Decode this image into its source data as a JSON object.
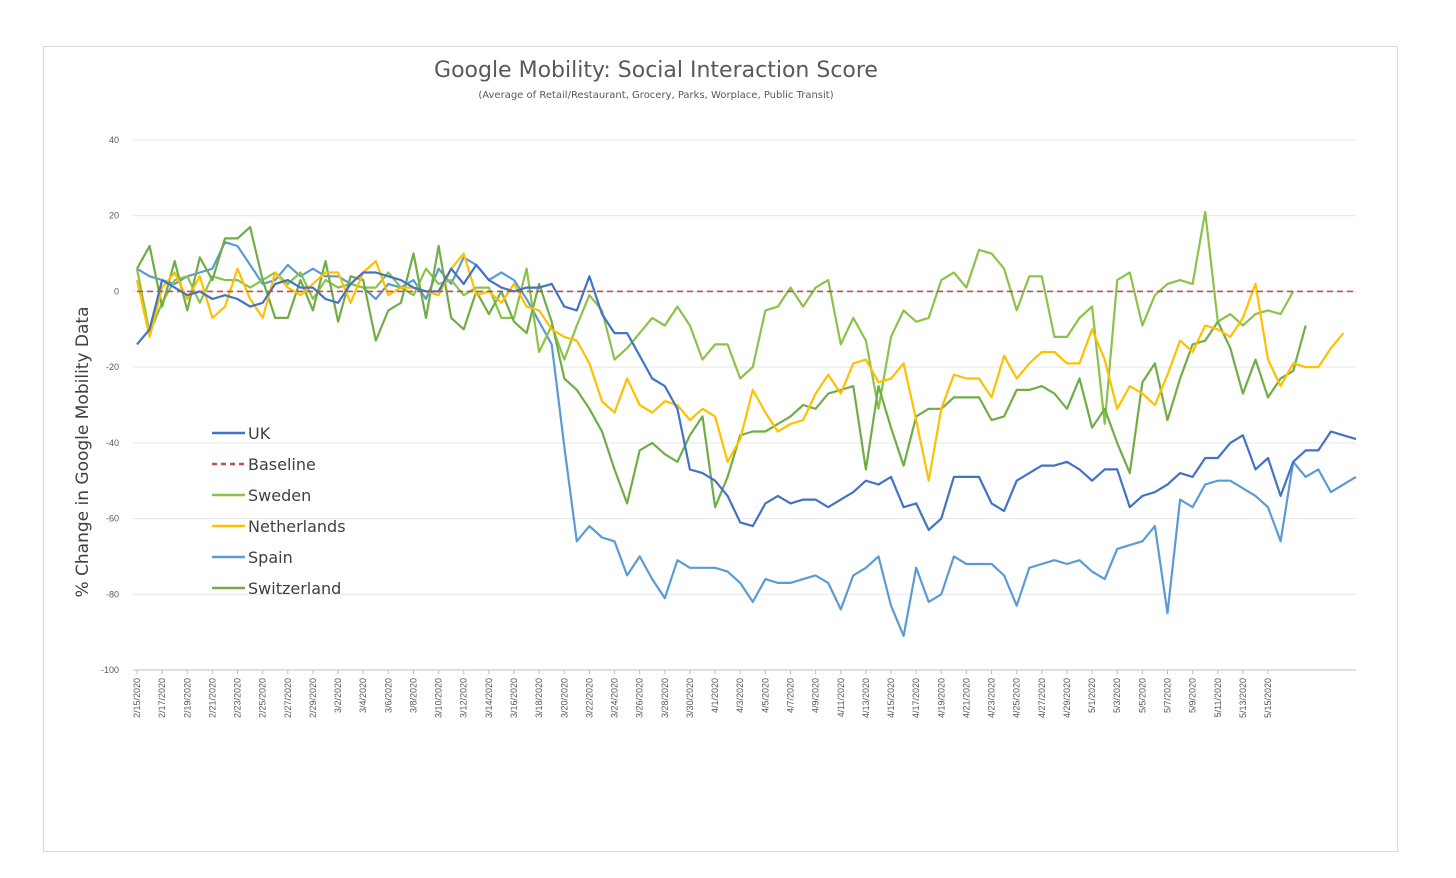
{
  "chart_data": {
    "type": "line",
    "title": "Google Mobility:  Social Interaction Score",
    "subtitle": "(Average of Retail/Restaurant, Grocery, Parks, Worplace,  Public Transit)",
    "xlabel": "",
    "ylabel": "% Change in Google Mobility Data",
    "ylim": [
      -100,
      40
    ],
    "yticks": [
      40,
      20,
      0,
      -20,
      -40,
      -60,
      -80,
      -100
    ],
    "grid": true,
    "legend": "left-center",
    "x_tick_labels": [
      "2/15/2020",
      "2/17/2020",
      "2/19/2020",
      "2/21/2020",
      "2/23/2020",
      "2/25/2020",
      "2/27/2020",
      "2/29/2020",
      "3/2/2020",
      "3/4/2020",
      "3/6/2020",
      "3/8/2020",
      "3/10/2020",
      "3/12/2020",
      "3/14/2020",
      "3/16/2020",
      "3/18/2020",
      "3/20/2020",
      "3/22/2020",
      "3/24/2020",
      "3/26/2020",
      "3/28/2020",
      "3/30/2020",
      "4/1/2020",
      "4/3/2020",
      "4/5/2020",
      "4/7/2020",
      "4/9/2020",
      "4/11/2020",
      "4/13/2020",
      "4/15/2020",
      "4/17/2020",
      "4/19/2020",
      "4/21/2020",
      "4/23/2020",
      "4/25/2020",
      "4/27/2020",
      "4/29/2020",
      "5/1/2020",
      "5/3/2020",
      "5/5/2020",
      "5/7/2020",
      "5/9/2020",
      "5/11/2020",
      "5/13/2020",
      "5/15/2020"
    ],
    "series": [
      {
        "name": "UK",
        "color": "#4472c4",
        "dash": "",
        "values": [
          -14,
          -10,
          3,
          1,
          -1,
          0,
          -2,
          -1,
          -2,
          -4,
          -3,
          2,
          3,
          1,
          1,
          -2,
          -3,
          2,
          5,
          5,
          4,
          3,
          1,
          0,
          0,
          6,
          2,
          7,
          3,
          1,
          0,
          1,
          1,
          2,
          -4,
          -5,
          4,
          -6,
          -11,
          -11,
          -17,
          -23,
          -25,
          -31,
          -47,
          -48,
          -50,
          -54,
          -61,
          -62,
          -56,
          -54,
          -56,
          -55,
          -55,
          -57,
          -55,
          -53,
          -50,
          -51,
          -49,
          -57,
          -56,
          -63,
          -60,
          -49,
          -49,
          -49,
          -56,
          -58,
          -50,
          -48,
          -46,
          -46,
          -45,
          -47,
          -50,
          -47,
          -47,
          -57,
          -54,
          -53,
          -51,
          -48,
          -49,
          -44,
          -44,
          -40,
          -38,
          -47,
          -44,
          -54,
          -45,
          -42,
          -42,
          -37,
          -38,
          -39
        ]
      },
      {
        "name": "Baseline",
        "color": "#c0504d",
        "dash": "6,4",
        "values": [
          0,
          0,
          0,
          0,
          0,
          0,
          0,
          0,
          0,
          0,
          0,
          0,
          0,
          0,
          0,
          0,
          0,
          0,
          0,
          0,
          0,
          0,
          0,
          0,
          0,
          0,
          0,
          0,
          0,
          0,
          0,
          0,
          0,
          0,
          0,
          0,
          0,
          0,
          0,
          0,
          0,
          0,
          0,
          0,
          0,
          0,
          0,
          0,
          0,
          0,
          0,
          0,
          0,
          0,
          0,
          0,
          0,
          0,
          0,
          0,
          0,
          0,
          0,
          0,
          0,
          0,
          0,
          0,
          0,
          0,
          0,
          0,
          0,
          0,
          0,
          0,
          0,
          0,
          0,
          0,
          0,
          0,
          0,
          0,
          0,
          0,
          0,
          0,
          0,
          0,
          0,
          0,
          0,
          0,
          0,
          0,
          0,
          0
        ]
      },
      {
        "name": "Sweden",
        "color": "#8bc34a",
        "dash": "",
        "values": [
          6,
          -11,
          -3,
          3,
          4,
          -3,
          4,
          3,
          3,
          1,
          3,
          5,
          2,
          5,
          -2,
          3,
          1,
          2,
          1,
          1,
          5,
          1,
          -1,
          6,
          2,
          3,
          -1,
          1,
          1,
          -7,
          -7,
          6,
          -16,
          -9,
          -18,
          -9,
          -1,
          -5,
          -18,
          -15,
          -11,
          -7,
          -9,
          -4,
          -9,
          -18,
          -14,
          -14,
          -23,
          -20,
          -5,
          -4,
          1,
          -4,
          1,
          3,
          -14,
          -7,
          -13,
          -31,
          -12,
          -5,
          -8,
          -7,
          3,
          5,
          1,
          11,
          10,
          6,
          -5,
          4,
          4,
          -12,
          -12,
          -7,
          -4,
          -35,
          3,
          5,
          -9,
          -1,
          2,
          3,
          2,
          21,
          -8,
          -6,
          -9,
          -6,
          -5,
          -6,
          0
        ]
      },
      {
        "name": "Netherlands",
        "color": "#ffc000",
        "dash": "",
        "values": [
          3,
          -12,
          1,
          5,
          -2,
          4,
          -7,
          -4,
          6,
          -2,
          -7,
          5,
          1,
          -1,
          2,
          5,
          5,
          -3,
          5,
          8,
          -1,
          1,
          1,
          0,
          -1,
          6,
          10,
          -1,
          0,
          -3,
          2,
          -4,
          -5,
          -10,
          -12,
          -13,
          -19,
          -29,
          -32,
          -23,
          -30,
          -32,
          -29,
          -30,
          -34,
          -31,
          -33,
          -45,
          -39,
          -26,
          -32,
          -37,
          -35,
          -34,
          -27,
          -22,
          -27,
          -19,
          -18,
          -24,
          -23,
          -19,
          -34,
          -50,
          -31,
          -22,
          -23,
          -23,
          -28,
          -17,
          -23,
          -19,
          -16,
          -16,
          -19,
          -19,
          -10,
          -18,
          -31,
          -25,
          -27,
          -30,
          -22,
          -13,
          -16,
          -9,
          -10,
          -12,
          -7,
          2,
          -18,
          -25,
          -19,
          -20,
          -20,
          -15,
          -11
        ]
      },
      {
        "name": "Spain",
        "color": "#5b9bd5",
        "dash": "",
        "values": [
          6,
          4,
          3,
          2,
          4,
          5,
          6,
          13,
          12,
          7,
          2,
          3,
          7,
          4,
          6,
          4,
          4,
          2,
          1,
          -2,
          2,
          1,
          3,
          -2,
          6,
          2,
          9,
          7,
          3,
          5,
          3,
          -2,
          -8,
          -14,
          -41,
          -66,
          -62,
          -65,
          -66,
          -75,
          -70,
          -76,
          -81,
          -71,
          -73,
          -73,
          -73,
          -74,
          -77,
          -82,
          -76,
          -77,
          -77,
          -76,
          -75,
          -77,
          -84,
          -75,
          -73,
          -70,
          -83,
          -91,
          -73,
          -82,
          -80,
          -70,
          -72,
          -72,
          -72,
          -75,
          -83,
          -73,
          -72,
          -71,
          -72,
          -71,
          -74,
          -76,
          -68,
          -67,
          -66,
          -62,
          -85,
          -55,
          -57,
          -51,
          -50,
          -50,
          -52,
          -54,
          -57,
          -66,
          -45,
          -49,
          -47,
          -53,
          -51,
          -49
        ]
      },
      {
        "name": "Switzerland",
        "color": "#70ad47",
        "dash": "",
        "values": [
          6,
          12,
          -4,
          8,
          -5,
          9,
          3,
          14,
          14,
          17,
          3,
          -7,
          -7,
          3,
          -5,
          8,
          -8,
          4,
          3,
          -13,
          -5,
          -3,
          10,
          -7,
          12,
          -7,
          -10,
          0,
          -6,
          0,
          -8,
          -11,
          2,
          -8,
          -23,
          -26,
          -31,
          -37,
          -47,
          -56,
          -42,
          -40,
          -43,
          -45,
          -38,
          -33,
          -57,
          -49,
          -38,
          -37,
          -37,
          -35,
          -33,
          -30,
          -31,
          -27,
          -26,
          -25,
          -47,
          -25,
          -36,
          -46,
          -33,
          -31,
          -31,
          -28,
          -28,
          -28,
          -34,
          -33,
          -26,
          -26,
          -25,
          -27,
          -31,
          -23,
          -36,
          -31,
          -40,
          -48,
          -24,
          -19,
          -34,
          -23,
          -14,
          -13,
          -8,
          -15,
          -27,
          -18,
          -28,
          -23,
          -21,
          -9
        ]
      }
    ]
  }
}
